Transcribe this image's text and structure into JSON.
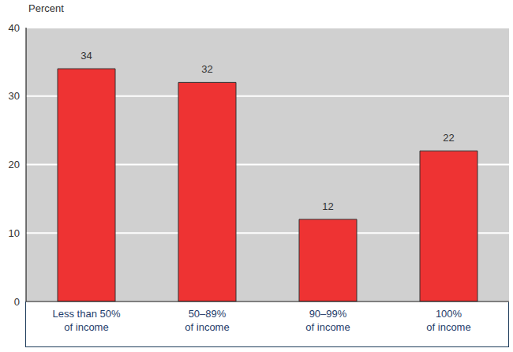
{
  "chart_data": {
    "type": "bar",
    "ylabel": "Percent",
    "categories": [
      "Less than 50%\nof income",
      "50–89%\nof income",
      "90–99%\nof income",
      "100%\nof income"
    ],
    "values": [
      34,
      32,
      12,
      22
    ],
    "color": "#ee3333",
    "ylim": [
      0,
      40
    ],
    "yticks": [
      0,
      10,
      20,
      30,
      40
    ],
    "grid": true,
    "data_labels": true
  }
}
